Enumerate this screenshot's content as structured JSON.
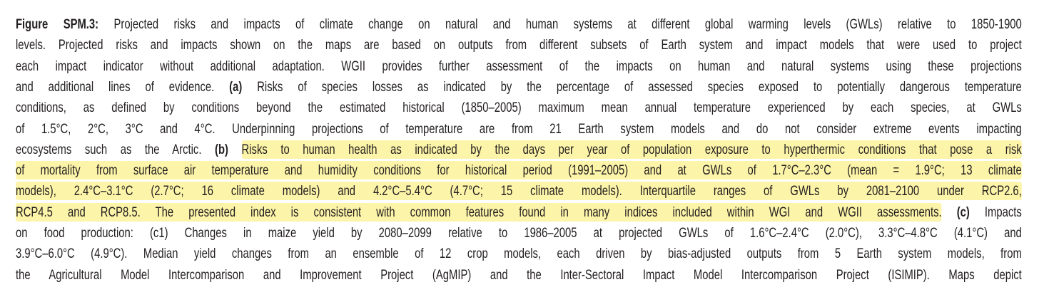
{
  "caption": {
    "lines": [
      [
        {
          "text": "Figure SPM.3:",
          "bold": true
        },
        {
          "text": " Projected risks and impacts of climate change on natural and human systems at different global warming levels (GWLs) relative to 1850-1900"
        }
      ],
      [
        {
          "text": "levels. Projected risks and impacts shown on the maps are based on outputs from different subsets of Earth system and impact models that were used to project"
        }
      ],
      [
        {
          "text": "each impact indicator without additional adaptation. WGII provides further assessment of the impacts on human and natural systems using these projections"
        }
      ],
      [
        {
          "text": "and additional lines of evidence. "
        },
        {
          "text": "(a)",
          "bold": true
        },
        {
          "text": " Risks of species losses as indicated by the percentage of assessed species exposed to potentially dangerous temperature"
        }
      ],
      [
        {
          "text": "conditions, as defined by conditions beyond the estimated historical (1850–2005) maximum mean annual temperature experienced by each species, at GWLs"
        }
      ],
      [
        {
          "text": "of 1.5°C, 2°C, 3°C and 4°C. Underpinning projections of temperature are from 21 Earth system models and do not consider extreme events impacting"
        }
      ],
      [
        {
          "text": "ecosystems such as the Arctic. "
        },
        {
          "text": "(b) ",
          "bold": true
        },
        {
          "text": "Risks to human health as indicated by the days per year of population exposure to hyperthermic conditions that pose a risk",
          "highlight": true
        }
      ],
      [
        {
          "text": "of mortality from surface air temperature and humidity conditions for historical period (1991–2005) and at GWLs of 1.7°C–2.3°C (mean = 1.9°C; 13 climate",
          "highlight": true
        }
      ],
      [
        {
          "text": "models), 2.4°C–3.1°C (2.7°C; 16 climate models) and 4.2°C–5.4°C (4.7°C; 15 climate models). Interquartile ranges of GWLs by 2081–2100 under RCP2.6,",
          "highlight": true
        }
      ],
      [
        {
          "text": "RCP4.5 and RCP8.5. The presented index is consistent with common features found in many indices included within WGI and WGII assessments.",
          "highlight": true
        },
        {
          "text": " (c)",
          "bold": true
        },
        {
          "text": " Impacts"
        }
      ],
      [
        {
          "text": "on food production: (c1) Changes in maize yield by 2080–2099 relative to 1986–2005 at projected GWLs of 1.6°C–2.4°C (2.0°C), 3.3°C–4.8°C (4.1°C) and"
        }
      ],
      [
        {
          "text": "3.9°C–6.0°C (4.9°C). Median yield changes from an ensemble of 12 crop models, each driven by bias-adjusted outputs from 5 Earth system models, from"
        }
      ],
      [
        {
          "text": "the Agricultural Model Intercomparison and Improvement Project (AgMIP) and the Inter-Sectoral Impact Model Intercomparison Project (ISIMIP). Maps depict"
        }
      ]
    ]
  }
}
